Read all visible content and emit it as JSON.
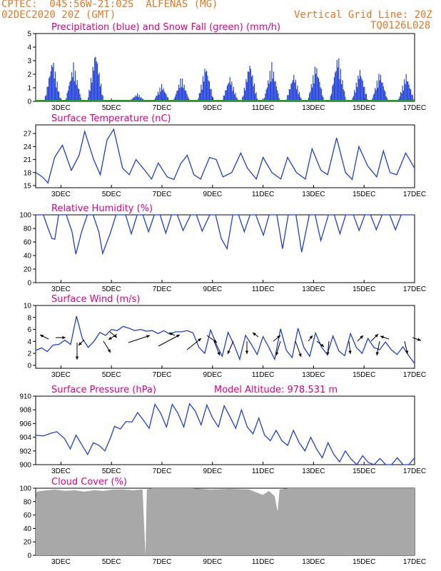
{
  "header": {
    "line1_left": "CPTEC:  045:56W-21:02S  ALFENAS (MG)",
    "line2_left": "02DEC2020 20Z (GMT)",
    "line1_right": "Vertical Grid Line: 20Z",
    "line2_right": "TQ0126L028"
  },
  "colors": {
    "header": "#e87722",
    "title": "#e0007a",
    "line": "#1f3fdc",
    "snow": "#1aa01a",
    "cloud": "#a8a8a8"
  },
  "days": [
    "3DEC",
    "5DEC",
    "7DEC",
    "9DEC",
    "11DEC",
    "13DEC",
    "15DEC",
    "17DEC"
  ],
  "chart_data": [
    {
      "type": "bar",
      "title": "Precipitation (blue) and Snow Fall (green) (mm/h)",
      "ylim": [
        0,
        5
      ],
      "yticks": [
        0,
        1,
        2,
        3,
        4,
        5
      ],
      "x_range_days": [
        0,
        15
      ],
      "peaks": [
        {
          "day": 0.75,
          "value": 3.3
        },
        {
          "day": 1.7,
          "value": 2.9
        },
        {
          "day": 2.7,
          "value": 3.9
        },
        {
          "day": 4.6,
          "value": 0.6
        },
        {
          "day": 5.7,
          "value": 1.3
        },
        {
          "day": 6.6,
          "value": 1.9
        },
        {
          "day": 7.7,
          "value": 2.8
        },
        {
          "day": 8.8,
          "value": 1.9
        },
        {
          "day": 9.7,
          "value": 3.0
        },
        {
          "day": 10.7,
          "value": 2.9
        },
        {
          "day": 11.7,
          "value": 2.1
        },
        {
          "day": 12.7,
          "value": 2.9
        },
        {
          "day": 13.7,
          "value": 3.6
        },
        {
          "day": 14.7,
          "value": 2.5
        },
        {
          "day": 15.6,
          "value": 2.3
        },
        {
          "day": 16.8,
          "value": 2.1
        }
      ]
    },
    {
      "type": "line",
      "title": "Surface Temperature (nC)",
      "ylim": [
        14.5,
        29
      ],
      "yticks": [
        15,
        18,
        21,
        24,
        27
      ],
      "x_range_days": [
        0,
        15
      ],
      "points": [
        [
          0,
          18
        ],
        [
          0.3,
          17
        ],
        [
          0.55,
          15.6
        ],
        [
          0.85,
          21.5
        ],
        [
          1.2,
          24.3
        ],
        [
          1.6,
          18.5
        ],
        [
          1.95,
          22
        ],
        [
          2.2,
          27.5
        ],
        [
          2.6,
          21
        ],
        [
          2.9,
          17.5
        ],
        [
          3.2,
          25.5
        ],
        [
          3.5,
          28
        ],
        [
          3.9,
          19
        ],
        [
          4.2,
          17.5
        ],
        [
          4.5,
          21
        ],
        [
          4.9,
          18.5
        ],
        [
          5.2,
          16.5
        ],
        [
          5.5,
          20.2
        ],
        [
          5.9,
          17
        ],
        [
          6.2,
          16.4
        ],
        [
          6.5,
          20
        ],
        [
          6.8,
          22
        ],
        [
          7.1,
          17.5
        ],
        [
          7.4,
          16.5
        ],
        [
          7.8,
          21.5
        ],
        [
          8.1,
          21
        ],
        [
          8.4,
          17
        ],
        [
          8.8,
          18
        ],
        [
          9.2,
          22.5
        ],
        [
          9.5,
          19
        ],
        [
          9.9,
          16.5
        ],
        [
          10.2,
          21.5
        ],
        [
          10.6,
          18
        ],
        [
          11,
          16.5
        ],
        [
          11.3,
          21.5
        ],
        [
          11.7,
          18
        ],
        [
          12.1,
          16.5
        ],
        [
          12.4,
          23.5
        ],
        [
          12.8,
          18.5
        ],
        [
          13.1,
          17.5
        ],
        [
          13.5,
          26
        ],
        [
          13.9,
          18
        ],
        [
          14.2,
          16.4
        ],
        [
          14.5,
          24
        ],
        [
          14.9,
          19.5
        ],
        [
          15.3,
          17
        ],
        [
          15.6,
          23
        ],
        [
          15.9,
          18
        ],
        [
          16.2,
          17.5
        ],
        [
          16.6,
          22.5
        ],
        [
          17,
          19
        ]
      ]
    },
    {
      "type": "line",
      "title": "Relative Humidity (%)",
      "ylim": [
        0,
        100
      ],
      "yticks": [
        0,
        20,
        40,
        60,
        80,
        100
      ],
      "x_range_days": [
        0,
        15
      ],
      "points": [
        [
          0,
          100
        ],
        [
          0.4,
          100
        ],
        [
          0.65,
          80
        ],
        [
          0.85,
          65
        ],
        [
          1,
          64
        ],
        [
          1.2,
          100
        ],
        [
          1.6,
          100
        ],
        [
          1.9,
          75
        ],
        [
          2.1,
          42
        ],
        [
          2.4,
          75
        ],
        [
          2.7,
          100
        ],
        [
          3,
          100
        ],
        [
          3.3,
          75
        ],
        [
          3.5,
          43
        ],
        [
          3.9,
          73
        ],
        [
          4.2,
          100
        ],
        [
          4.7,
          100
        ],
        [
          5,
          72
        ],
        [
          5.3,
          100
        ],
        [
          5.6,
          100
        ],
        [
          5.9,
          75
        ],
        [
          6.2,
          100
        ],
        [
          6.5,
          100
        ],
        [
          6.8,
          73
        ],
        [
          7.1,
          100
        ],
        [
          7.4,
          100
        ],
        [
          7.7,
          77
        ],
        [
          8.1,
          100
        ],
        [
          8.4,
          100
        ],
        [
          8.7,
          76
        ],
        [
          9.1,
          100
        ],
        [
          9.4,
          100
        ],
        [
          9.7,
          65
        ],
        [
          10,
          50
        ],
        [
          10.3,
          100
        ],
        [
          10.6,
          100
        ],
        [
          10.9,
          75
        ],
        [
          11.2,
          100
        ],
        [
          11.5,
          100
        ],
        [
          11.9,
          70
        ],
        [
          12.2,
          100
        ],
        [
          12.6,
          100
        ],
        [
          12.9,
          50
        ],
        [
          13.2,
          100
        ],
        [
          13.6,
          100
        ],
        [
          13.9,
          45
        ],
        [
          14.3,
          100
        ],
        [
          14.6,
          100
        ],
        [
          14.9,
          62
        ],
        [
          15.3,
          100
        ],
        [
          15.6,
          100
        ],
        [
          15.9,
          72
        ],
        [
          16.2,
          100
        ],
        [
          16.6,
          100
        ],
        [
          16.9,
          77
        ],
        [
          17.2,
          100
        ],
        [
          17.5,
          100
        ],
        [
          17.8,
          78
        ],
        [
          18.1,
          100
        ],
        [
          18.5,
          100
        ],
        [
          18.8,
          78
        ],
        [
          19.1,
          100
        ],
        [
          19.5,
          100
        ],
        [
          19.8,
          100
        ]
      ]
    },
    {
      "type": "line",
      "title": "Surface Wind (m/s)",
      "ylim": [
        -0.5,
        10
      ],
      "yticks": [
        0,
        2,
        4,
        6,
        8,
        10
      ],
      "x_range_days": [
        0,
        15
      ],
      "points": [
        [
          0,
          2.5
        ],
        [
          0.3,
          2.9
        ],
        [
          0.6,
          2.3
        ],
        [
          0.9,
          3.4
        ],
        [
          1.2,
          3.5
        ],
        [
          1.5,
          4.2
        ],
        [
          1.8,
          3.5
        ],
        [
          2.1,
          8.2
        ],
        [
          2.4,
          4.5
        ],
        [
          2.7,
          3
        ],
        [
          3,
          4
        ],
        [
          3.3,
          5.5
        ],
        [
          3.6,
          5
        ],
        [
          3.9,
          6
        ],
        [
          4.2,
          5.8
        ],
        [
          4.5,
          6.5
        ],
        [
          4.8,
          6.2
        ],
        [
          5.1,
          5.8
        ],
        [
          5.4,
          6
        ],
        [
          5.7,
          5.7
        ],
        [
          6,
          5.8
        ],
        [
          6.3,
          5.3
        ],
        [
          6.6,
          5.8
        ],
        [
          6.9,
          5.2
        ],
        [
          7.2,
          5.6
        ],
        [
          7.5,
          5.6
        ],
        [
          7.8,
          5.8
        ],
        [
          8.1,
          5.4
        ],
        [
          8.4,
          3
        ],
        [
          8.7,
          2
        ],
        [
          9,
          5.9
        ],
        [
          9.3,
          3.5
        ],
        [
          9.6,
          1.5
        ],
        [
          9.9,
          5.5
        ],
        [
          10.2,
          3.5
        ],
        [
          10.5,
          1
        ],
        [
          10.8,
          5
        ],
        [
          11.1,
          3.5
        ],
        [
          11.4,
          1.8
        ],
        [
          11.7,
          4.8
        ],
        [
          12,
          3
        ],
        [
          12.3,
          1
        ],
        [
          12.6,
          6.1
        ],
        [
          12.9,
          2.5
        ],
        [
          13.2,
          1.3
        ],
        [
          13.5,
          6.2
        ],
        [
          13.8,
          3
        ],
        [
          14.1,
          1.5
        ],
        [
          14.4,
          5.4
        ],
        [
          14.7,
          3.1
        ],
        [
          15,
          1.8
        ],
        [
          15.3,
          4.9
        ],
        [
          15.6,
          2.4
        ],
        [
          15.9,
          1.6
        ],
        [
          16.2,
          5.3
        ],
        [
          16.5,
          3
        ],
        [
          16.8,
          2
        ],
        [
          17.1,
          4.5
        ],
        [
          17.4,
          3
        ],
        [
          17.7,
          2.6
        ],
        [
          18,
          3.9
        ],
        [
          18.3,
          2.6
        ],
        [
          18.6,
          1.8
        ],
        [
          18.9,
          3.1
        ],
        [
          19.2,
          1.6
        ],
        [
          19.5,
          0.3
        ]
      ]
    },
    {
      "type": "line",
      "title": "Surface Pressure (hPa)",
      "annotation": "Model Altitude: 978.531 m",
      "ylim": [
        900,
        910
      ],
      "yticks": [
        900,
        902,
        904,
        906,
        908,
        910
      ],
      "x_range_days": [
        0,
        15
      ],
      "points": [
        [
          0,
          904.3
        ],
        [
          0.4,
          904.2
        ],
        [
          0.8,
          904.6
        ],
        [
          1.1,
          904.8
        ],
        [
          1.5,
          903.8
        ],
        [
          1.8,
          902.3
        ],
        [
          2.1,
          904.3
        ],
        [
          2.4,
          902.9
        ],
        [
          2.7,
          901.5
        ],
        [
          3,
          903.2
        ],
        [
          3.3,
          902.8
        ],
        [
          3.6,
          902
        ],
        [
          3.9,
          904
        ],
        [
          4.1,
          905.6
        ],
        [
          4.4,
          905.2
        ],
        [
          4.7,
          906.3
        ],
        [
          5,
          906.2
        ],
        [
          5.3,
          907.6
        ],
        [
          5.6,
          906.5
        ],
        [
          5.9,
          905.3
        ],
        [
          6.2,
          908.8
        ],
        [
          6.5,
          907.5
        ],
        [
          6.8,
          905.5
        ],
        [
          7.1,
          908.8
        ],
        [
          7.4,
          907.5
        ],
        [
          7.7,
          905.5
        ],
        [
          8,
          908.9
        ],
        [
          8.3,
          907.8
        ],
        [
          8.6,
          905.8
        ],
        [
          8.9,
          908.7
        ],
        [
          9.2,
          906.8
        ],
        [
          9.5,
          905.5
        ],
        [
          9.8,
          908.6
        ],
        [
          10.1,
          907
        ],
        [
          10.4,
          905.3
        ],
        [
          10.7,
          908
        ],
        [
          11,
          905.5
        ],
        [
          11.3,
          904.5
        ],
        [
          11.6,
          906.8
        ],
        [
          11.9,
          904.3
        ],
        [
          12.2,
          903.5
        ],
        [
          12.5,
          905
        ],
        [
          12.8,
          903.5
        ],
        [
          13.1,
          902.8
        ],
        [
          13.4,
          905
        ],
        [
          13.7,
          903.2
        ],
        [
          14,
          902
        ],
        [
          14.3,
          904
        ],
        [
          14.6,
          902.3
        ],
        [
          14.9,
          901
        ],
        [
          15.2,
          903.2
        ],
        [
          15.5,
          901.5
        ],
        [
          15.8,
          900.4
        ],
        [
          16.1,
          902
        ],
        [
          16.4,
          900.8
        ],
        [
          16.7,
          899.9
        ],
        [
          17,
          901.3
        ],
        [
          17.3,
          900.3
        ],
        [
          17.6,
          899.8
        ],
        [
          17.9,
          900.9
        ],
        [
          18.2,
          899.8
        ],
        [
          18.5,
          899.5
        ],
        [
          18.8,
          901
        ],
        [
          19.1,
          899.8
        ],
        [
          19.4,
          899.5
        ],
        [
          19.7,
          901
        ]
      ]
    },
    {
      "type": "area",
      "title": "Cloud Cover (%)",
      "ylim": [
        0,
        100
      ],
      "yticks": [
        0,
        20,
        40,
        60,
        80,
        100
      ],
      "x_range_days": [
        0,
        15
      ],
      "points": [
        [
          0,
          85
        ],
        [
          0.05,
          95
        ],
        [
          0.3,
          96
        ],
        [
          0.6,
          97
        ],
        [
          1,
          98
        ],
        [
          1.5,
          96
        ],
        [
          2,
          97
        ],
        [
          2.5,
          95
        ],
        [
          3,
          97
        ],
        [
          3.5,
          96
        ],
        [
          4,
          98
        ],
        [
          4.5,
          98
        ],
        [
          5,
          97
        ],
        [
          5.5,
          98
        ],
        [
          5.65,
          0
        ],
        [
          5.72,
          98
        ],
        [
          6,
          100
        ],
        [
          7,
          100
        ],
        [
          8,
          100
        ],
        [
          9,
          98
        ],
        [
          10,
          99
        ],
        [
          11,
          98
        ],
        [
          11.5,
          92
        ],
        [
          11.7,
          90
        ],
        [
          12,
          96
        ],
        [
          12.3,
          88
        ],
        [
          12.45,
          65
        ],
        [
          12.55,
          98
        ],
        [
          13,
          100
        ],
        [
          14,
          100
        ],
        [
          15,
          100
        ],
        [
          17,
          100
        ],
        [
          19.5,
          100
        ]
      ]
    }
  ]
}
